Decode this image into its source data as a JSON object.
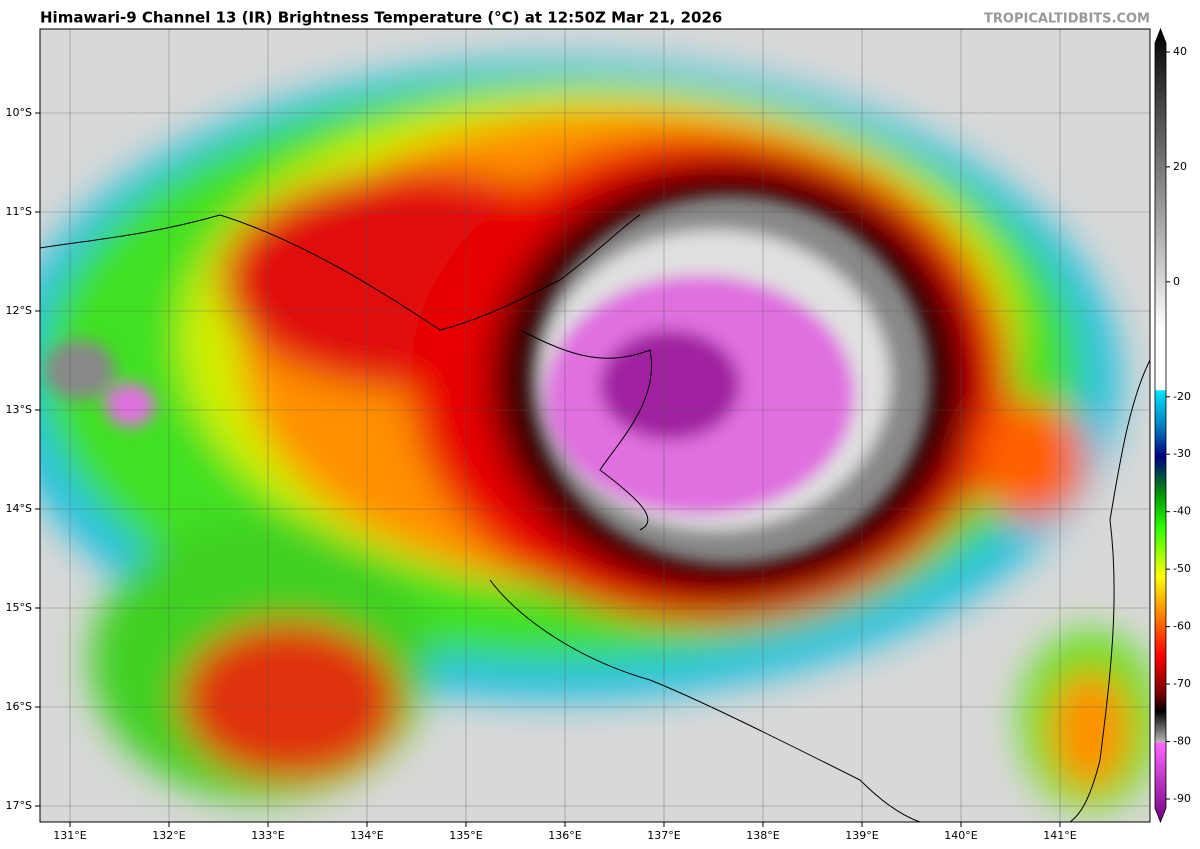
{
  "header": {
    "title": "Himawari-9 Channel 13 (IR) Brightness Temperature (°C) at 12:50Z Mar 21, 2026",
    "credit": "TROPICALTIDBITS.COM"
  },
  "map": {
    "latitudes": [
      "10°S",
      "11°S",
      "12°S",
      "13°S",
      "14°S",
      "15°S",
      "16°S",
      "17°S"
    ],
    "longitudes": [
      "131°E",
      "132°E",
      "133°E",
      "134°E",
      "135°E",
      "136°E",
      "137°E",
      "138°E",
      "139°E",
      "140°E",
      "141°E"
    ]
  },
  "colorbar": {
    "ticks": [
      40,
      20,
      0,
      -20,
      -30,
      -40,
      -50,
      -60,
      -70,
      -80,
      -90
    ],
    "range": [
      -94,
      44
    ]
  }
}
